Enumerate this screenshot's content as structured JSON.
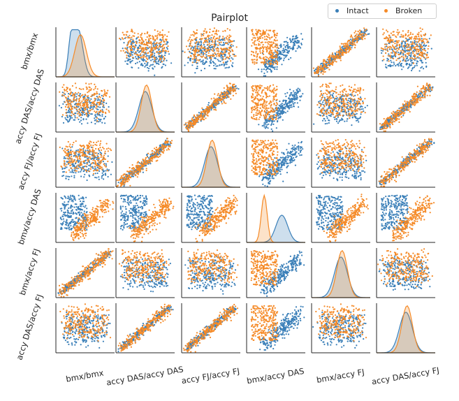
{
  "title": "Pairplot",
  "legend": {
    "entries": [
      {
        "label": "Intact",
        "color": "#3a7fb8"
      },
      {
        "label": "Broken",
        "color": "#f58a27"
      }
    ],
    "placement": "top-right"
  },
  "chart_data": {
    "type": "scatter",
    "title": "Pairplot",
    "variables": [
      "bmx/bmx",
      "accy DAS/accy DAS",
      "accy FJ/accy FJ",
      "bmx/accy DAS",
      "bmx/accy FJ",
      "accy DAS/accy FJ"
    ],
    "diagonal": "kde",
    "grid": false,
    "series": [
      {
        "name": "Intact",
        "color": "#3a7fb8"
      },
      {
        "name": "Broken",
        "color": "#f58a27"
      }
    ],
    "pairs": [
      {
        "x": "bmx/accy DAS",
        "y": "bmx/bmx",
        "Intact": [
          [
            0.45,
            0.35
          ],
          [
            0.55,
            0.45
          ],
          [
            0.65,
            0.55
          ],
          [
            0.75,
            0.65
          ],
          [
            0.85,
            0.75
          ]
        ],
        "Broken": [
          [
            0.1,
            0.4
          ],
          [
            0.2,
            0.7
          ],
          [
            0.25,
            0.5
          ],
          [
            0.3,
            0.85
          ],
          [
            0.4,
            0.55
          ]
        ]
      },
      {
        "x": "bmx/bmx",
        "y": "bmx/accy FJ",
        "Intact": [
          [
            0.2,
            0.15
          ],
          [
            0.4,
            0.35
          ],
          [
            0.6,
            0.55
          ],
          [
            0.8,
            0.75
          ],
          [
            0.9,
            0.88
          ]
        ],
        "Broken": [
          [
            0.25,
            0.25
          ],
          [
            0.45,
            0.42
          ],
          [
            0.65,
            0.62
          ],
          [
            0.8,
            0.78
          ],
          [
            0.95,
            0.92
          ]
        ]
      },
      {
        "x": "accy DAS/accy DAS",
        "y": "accy FJ/accy FJ",
        "Intact": [
          [
            0.2,
            0.2
          ],
          [
            0.4,
            0.4
          ],
          [
            0.6,
            0.6
          ],
          [
            0.8,
            0.8
          ]
        ],
        "Broken": [
          [
            0.3,
            0.3
          ],
          [
            0.5,
            0.5
          ],
          [
            0.7,
            0.72
          ],
          [
            0.9,
            0.92
          ]
        ]
      }
    ],
    "note_units": "normalized data units (no tick labels shown)"
  }
}
